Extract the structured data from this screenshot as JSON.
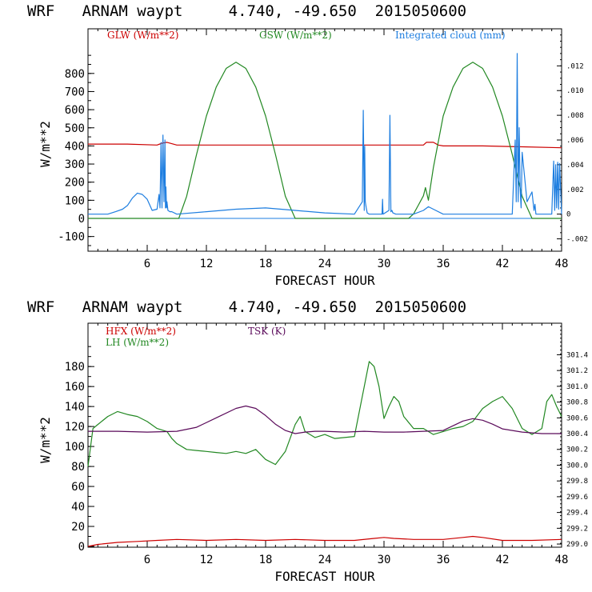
{
  "chart_data": [
    {
      "type": "line",
      "title": "WRF   ARNAM waypt     4.740, -49.650  2015050600",
      "xlabel": "FORECAST HOUR",
      "ylabel": "W/m**2",
      "xlim": [
        0,
        48
      ],
      "ylim": [
        -150,
        1000
      ],
      "y2lim": [
        -0.003,
        0.015
      ],
      "xticks": [
        6,
        12,
        18,
        24,
        30,
        36,
        42,
        48
      ],
      "xtick_labels": [
        "6",
        "12",
        "18",
        "24",
        "30",
        "36",
        "42",
        "48"
      ],
      "yticks": [
        -100,
        0,
        100,
        200,
        300,
        400,
        500,
        600,
        700,
        800
      ],
      "ytick_labels": [
        "-100",
        "0",
        "100",
        "200",
        "300",
        "400",
        "500",
        "600",
        "700",
        "800"
      ],
      "y2ticks": [
        -0.002,
        0,
        0.002,
        0.004,
        0.006,
        0.008,
        0.01,
        0.012
      ],
      "y2tick_labels": [
        "-.002",
        "0",
        ".002",
        ".004",
        ".006",
        ".008",
        ".010",
        ".012"
      ],
      "series": [
        {
          "name": "GLW (W/m**2)",
          "color": "#cc0000",
          "axis": "left",
          "x": [
            0,
            4,
            7,
            7.5,
            8,
            9,
            10,
            12,
            16,
            20,
            24,
            28,
            32,
            34,
            34.3,
            35,
            35.5,
            36,
            40,
            44,
            48
          ],
          "y": [
            410,
            410,
            405,
            415,
            420,
            405,
            405,
            405,
            405,
            405,
            405,
            405,
            405,
            405,
            420,
            420,
            405,
            400,
            400,
            395,
            390
          ]
        },
        {
          "name": "GSW (W/m**2)",
          "color": "#228822",
          "axis": "left",
          "x": [
            0,
            9.2,
            10,
            11,
            12,
            13,
            14,
            15,
            16,
            17,
            18,
            19,
            20,
            21,
            21.2,
            32.5,
            33,
            33.5,
            34,
            34.2,
            34.5,
            35,
            36,
            37,
            38,
            39,
            40,
            41,
            42,
            43,
            44,
            45,
            45.3,
            48
          ],
          "y": [
            0,
            0,
            122,
            353,
            565,
            725,
            828,
            862,
            828,
            725,
            565,
            353,
            122,
            0,
            0,
            0,
            25,
            75,
            125,
            170,
            100,
            280,
            565,
            725,
            828,
            862,
            828,
            725,
            565,
            353,
            122,
            0,
            0,
            0
          ]
        },
        {
          "name": "Integrated cloud (mm)",
          "color": "#1e7ee0",
          "axis": "right",
          "x": [
            0,
            2,
            2.8,
            3.5,
            4,
            4.5,
            5,
            5.5,
            6,
            6.5,
            7,
            7.2,
            7.3,
            7.4,
            7.5,
            7.6,
            7.7,
            7.8,
            7.85,
            7.9,
            7.95,
            8,
            8.1,
            8.3,
            8.5,
            9,
            12,
            15,
            18,
            21,
            24,
            27,
            27.8,
            27.9,
            28,
            28.05,
            28.1,
            28.2,
            28.3,
            28.5,
            29,
            29.8,
            29.85,
            29.9,
            30.5,
            30.6,
            30.7,
            30.8,
            30.9,
            31.2,
            33,
            34,
            34.5,
            35,
            36,
            40,
            43,
            43.3,
            43.4,
            43.5,
            43.6,
            43.7,
            43.8,
            43.9,
            44,
            44.5,
            45,
            45.2,
            45.3,
            45.4,
            46,
            46.5,
            47,
            47.2,
            47.3,
            47.4,
            47.5,
            47.6,
            47.7,
            47.8,
            48
          ],
          "y": [
            0,
            0,
            0.0002,
            0.0004,
            0.0007,
            0.0013,
            0.0017,
            0.0016,
            0.0012,
            0.0003,
            0.0004,
            0.0016,
            0.0005,
            0.0058,
            0.0005,
            0.0064,
            0.001,
            0.006,
            0.0005,
            0.0022,
            0.0005,
            0.001,
            0.0003,
            0.0002,
            0.0002,
            0,
            0.0002,
            0.0004,
            0.0005,
            0.0003,
            0.0001,
            0,
            0.001,
            0.0084,
            0.0003,
            0.0055,
            0.001,
            0.0005,
            0.0001,
            0,
            0,
            0,
            0.0012,
            0,
            0.0003,
            0.008,
            0.0002,
            0.0003,
            0.0001,
            0,
            0,
            0.0003,
            0.0006,
            0.0004,
            0,
            0,
            0,
            0.006,
            0.001,
            0.013,
            0.001,
            0.007,
            0.002,
            0.0005,
            0.005,
            0.001,
            0.0018,
            0.0003,
            0.0008,
            0,
            0,
            0,
            0,
            0.0043,
            0.0003,
            0.004,
            0.0005,
            0.0042,
            0.0004,
            0.0041,
            0
          ]
        }
      ]
    },
    {
      "type": "line",
      "title": "WRF   ARNAM waypt     4.740, -49.650  2015050600",
      "xlabel": "FORECAST HOUR",
      "ylabel": "W/m**2",
      "xlim": [
        0,
        48
      ],
      "ylim": [
        0,
        225
      ],
      "y2lim": [
        298.96,
        301.8
      ],
      "xticks": [
        6,
        12,
        18,
        24,
        30,
        36,
        42,
        48
      ],
      "xtick_labels": [
        "6",
        "12",
        "18",
        "24",
        "30",
        "36",
        "42",
        "48"
      ],
      "yticks": [
        0,
        20,
        40,
        60,
        80,
        100,
        120,
        140,
        160,
        180
      ],
      "ytick_labels": [
        "0",
        "20",
        "40",
        "60",
        "80",
        "100",
        "120",
        "140",
        "160",
        "180"
      ],
      "y2ticks": [
        299.0,
        299.2,
        299.4,
        299.6,
        299.8,
        300.0,
        300.2,
        300.4,
        300.6,
        300.8,
        301.0,
        301.2,
        301.4
      ],
      "y2tick_labels": [
        "299.0",
        "299.2",
        "299.4",
        "299.6",
        "299.8",
        "300.0",
        "300.2",
        "300.4",
        "300.6",
        "300.8",
        "301.0",
        "301.2",
        "301.4"
      ],
      "series": [
        {
          "name": "HFX (W/m**2)",
          "color": "#cc0000",
          "axis": "left",
          "x": [
            0,
            1,
            3,
            5,
            7,
            9,
            12,
            15,
            18,
            21,
            24,
            27,
            29,
            30,
            31,
            33,
            36,
            38,
            39,
            40,
            42,
            45,
            48
          ],
          "y": [
            0,
            2,
            4,
            5,
            6,
            7,
            6,
            7,
            6,
            7,
            6,
            6,
            8,
            9,
            8,
            7,
            7,
            9,
            10,
            9,
            6,
            6,
            7
          ]
        },
        {
          "name": "LH (W/m**2)",
          "color": "#228822",
          "axis": "left",
          "x": [
            0,
            0.5,
            1,
            2,
            3,
            4,
            5,
            6,
            7,
            8,
            8.5,
            9,
            10,
            11,
            12,
            13,
            14,
            15,
            16,
            17,
            18,
            19,
            20,
            21,
            21.5,
            22,
            23,
            24,
            25,
            26,
            27,
            28,
            28.5,
            29,
            29.5,
            30,
            30.5,
            31,
            31.5,
            32,
            33,
            34,
            35,
            36,
            37,
            38,
            39,
            40,
            41,
            42,
            43,
            44,
            45,
            46,
            46.5,
            47,
            47.5,
            48
          ],
          "y": [
            80,
            118,
            122,
            130,
            135,
            132,
            130,
            125,
            118,
            115,
            108,
            103,
            97,
            96,
            95,
            94,
            93,
            95,
            93,
            97,
            87,
            82,
            95,
            122,
            130,
            115,
            109,
            112,
            108,
            109,
            110,
            160,
            185,
            180,
            160,
            128,
            140,
            150,
            145,
            130,
            118,
            118,
            112,
            115,
            118,
            120,
            125,
            138,
            145,
            150,
            138,
            118,
            112,
            118,
            145,
            152,
            140,
            130
          ]
        },
        {
          "name": "TSK (K)",
          "color": "#5a0a5a",
          "axis": "right",
          "x": [
            0,
            3,
            6,
            9,
            11,
            13,
            15,
            16,
            17,
            18,
            19,
            20,
            21,
            22,
            23,
            24,
            26,
            28,
            30,
            32,
            34,
            36,
            37,
            38,
            39,
            40,
            41,
            42,
            44,
            46,
            48
          ],
          "y": [
            300.43,
            300.43,
            300.42,
            300.43,
            300.48,
            300.6,
            300.72,
            300.75,
            300.72,
            300.63,
            300.52,
            300.44,
            300.4,
            300.42,
            300.43,
            300.43,
            300.42,
            300.43,
            300.42,
            300.42,
            300.43,
            300.44,
            300.5,
            300.56,
            300.59,
            300.57,
            300.52,
            300.46,
            300.42,
            300.4,
            300.4
          ]
        }
      ]
    }
  ]
}
